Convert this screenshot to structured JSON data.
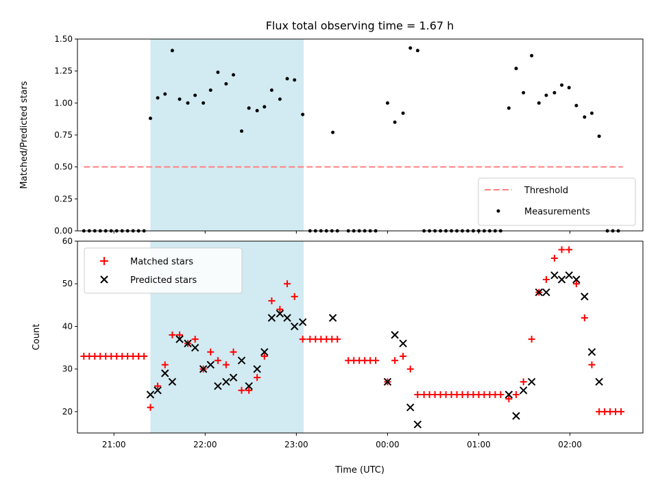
{
  "chart_data": [
    {
      "type": "scatter",
      "title": "Flux total observing time = 1.67 h",
      "xlabel": "",
      "ylabel": "Matched/Predicted stars",
      "ylim": [
        0,
        1.5
      ],
      "yticks": [
        "0.00",
        "0.25",
        "0.50",
        "0.75",
        "1.00",
        "1.25",
        "1.50"
      ],
      "xlim_hours": [
        20.6,
        26.8
      ],
      "shaded_region_hours": [
        21.4,
        23.08
      ],
      "shade_color": "#add8e6",
      "legend_position": "lower-right",
      "threshold": {
        "name": "Threshold",
        "value": 0.5,
        "x_range_hours": [
          20.67,
          26.58
        ],
        "color": "#ff7f7f"
      },
      "series": [
        {
          "name": "Measurements",
          "color": "#000000",
          "x_hours": [
            20.67,
            20.73,
            20.79,
            20.85,
            20.91,
            20.97,
            21.03,
            21.09,
            21.15,
            21.21,
            21.27,
            21.33,
            21.4,
            21.48,
            21.56,
            21.64,
            21.72,
            21.81,
            21.89,
            21.98,
            22.06,
            22.14,
            22.23,
            22.31,
            22.4,
            22.48,
            22.57,
            22.65,
            22.73,
            22.82,
            22.9,
            22.98,
            23.07,
            23.15,
            23.21,
            23.27,
            23.33,
            23.39,
            23.45,
            23.57,
            23.63,
            23.69,
            23.75,
            23.81,
            23.87,
            23.4,
            24.0,
            24.08,
            24.17,
            24.25,
            24.33,
            24.4,
            24.46,
            24.52,
            24.58,
            24.64,
            24.7,
            24.76,
            24.82,
            24.88,
            24.94,
            25.0,
            25.06,
            25.12,
            25.18,
            25.24,
            25.33,
            25.41,
            25.49,
            25.58,
            25.66,
            25.74,
            25.83,
            25.91,
            25.99,
            26.07,
            26.16,
            26.24,
            26.32,
            26.41,
            26.47,
            26.53
          ],
          "y": [
            0,
            0,
            0,
            0,
            0,
            0,
            0,
            0,
            0,
            0,
            0,
            0,
            0.88,
            1.04,
            1.07,
            1.41,
            1.03,
            1.0,
            1.06,
            1.0,
            1.1,
            1.24,
            1.15,
            1.22,
            0.78,
            0.96,
            0.94,
            0.97,
            1.1,
            1.03,
            1.19,
            1.18,
            0.91,
            0,
            0,
            0,
            0,
            0,
            0,
            0,
            0,
            0,
            0,
            0,
            0,
            0.77,
            1.0,
            0.85,
            0.92,
            1.43,
            1.41,
            0,
            0,
            0,
            0,
            0,
            0,
            0,
            0,
            0,
            0,
            0,
            0,
            0,
            0,
            0,
            0.96,
            1.27,
            1.08,
            1.37,
            1.0,
            1.06,
            1.08,
            1.14,
            1.12,
            0.98,
            0.89,
            0.92,
            0.74,
            0,
            0,
            0
          ]
        }
      ]
    },
    {
      "type": "scatter",
      "title": "",
      "xlabel": "Time (UTC)",
      "ylabel": "Count",
      "ylim": [
        15,
        60
      ],
      "yticks": [
        "20",
        "30",
        "40",
        "50",
        "60"
      ],
      "xlim_hours": [
        20.6,
        26.8
      ],
      "xticks_hours": [
        21,
        22,
        23,
        24,
        25,
        26
      ],
      "xtick_labels": [
        "21:00",
        "22:00",
        "23:00",
        "00:00",
        "01:00",
        "02:00"
      ],
      "shaded_region_hours": [
        21.4,
        23.08
      ],
      "legend_position": "upper-left",
      "series": [
        {
          "name": "Matched stars",
          "marker": "+",
          "color": "#ff0000",
          "x_hours": [
            20.67,
            20.73,
            20.79,
            20.85,
            20.91,
            20.97,
            21.03,
            21.09,
            21.15,
            21.21,
            21.27,
            21.33,
            21.4,
            21.48,
            21.56,
            21.64,
            21.72,
            21.81,
            21.89,
            21.98,
            22.06,
            22.14,
            22.23,
            22.31,
            22.4,
            22.48,
            22.57,
            22.65,
            22.73,
            22.82,
            22.9,
            22.98,
            23.07,
            23.15,
            23.21,
            23.27,
            23.33,
            23.39,
            23.45,
            23.57,
            23.63,
            23.69,
            23.75,
            23.81,
            23.87,
            24.0,
            24.08,
            24.17,
            24.25,
            24.33,
            24.4,
            24.46,
            24.52,
            24.58,
            24.64,
            24.7,
            24.76,
            24.82,
            24.88,
            24.94,
            25.0,
            25.06,
            25.12,
            25.18,
            25.24,
            25.33,
            25.41,
            25.49,
            25.58,
            25.66,
            25.74,
            25.83,
            25.91,
            25.99,
            26.07,
            26.16,
            26.24,
            26.32,
            26.38,
            26.44,
            26.5,
            26.56
          ],
          "y": [
            33,
            33,
            33,
            33,
            33,
            33,
            33,
            33,
            33,
            33,
            33,
            33,
            21,
            26,
            31,
            38,
            38,
            36,
            37,
            30,
            34,
            32,
            31,
            34,
            25,
            25,
            28,
            33,
            46,
            44,
            50,
            47,
            37,
            37,
            37,
            37,
            37,
            37,
            37,
            32,
            32,
            32,
            32,
            32,
            32,
            27,
            32,
            33,
            30,
            24,
            24,
            24,
            24,
            24,
            24,
            24,
            24,
            24,
            24,
            24,
            24,
            24,
            24,
            24,
            24,
            23,
            24,
            27,
            37,
            48,
            51,
            56,
            58,
            58,
            50,
            42,
            31,
            20,
            20,
            20,
            20,
            20
          ]
        },
        {
          "name": "Predicted stars",
          "marker": "x",
          "color": "#000000",
          "x_hours": [
            21.4,
            21.48,
            21.56,
            21.64,
            21.72,
            21.81,
            21.89,
            21.98,
            22.06,
            22.14,
            22.23,
            22.31,
            22.4,
            22.48,
            22.57,
            22.65,
            22.73,
            22.82,
            22.9,
            22.98,
            23.07,
            23.4,
            24.0,
            24.08,
            24.17,
            24.25,
            24.33,
            25.33,
            25.41,
            25.49,
            25.58,
            25.66,
            25.74,
            25.83,
            25.91,
            25.99,
            26.07,
            26.16,
            26.24,
            26.32
          ],
          "y": [
            24,
            25,
            29,
            27,
            37,
            36,
            35,
            30,
            31,
            26,
            27,
            28,
            32,
            26,
            30,
            34,
            42,
            43,
            42,
            40,
            41,
            42,
            27,
            38,
            36,
            21,
            17,
            24,
            19,
            25,
            27,
            48,
            48,
            52,
            51,
            52,
            51,
            47,
            34,
            27
          ]
        }
      ]
    }
  ]
}
